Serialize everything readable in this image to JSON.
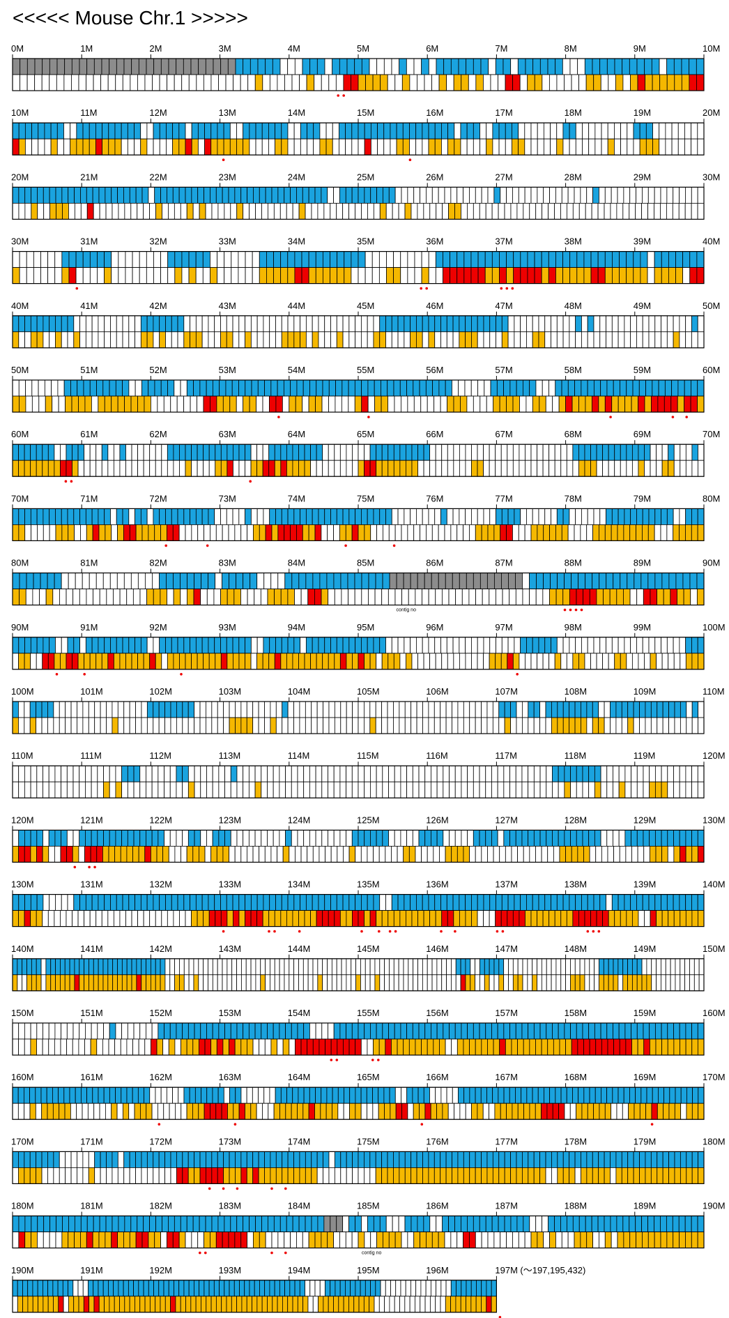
{
  "title": "<<<<< Mouse Chr.1 >>>>>",
  "end_note": "(〜197,195,432)",
  "gap_label": "contig no",
  "colors": {
    "cloned": "#1aa3df",
    "gap": "#8c8c8c",
    "marker": "#f5b800",
    "hit": "#ee0000",
    "empty": "#ffffff",
    "border": "#000000",
    "dot": "#ee0000"
  },
  "rows": [
    {
      "ticks": [
        "0M",
        "1M",
        "2M",
        "3M",
        "4M",
        "5M",
        "6M",
        "7M",
        "8M",
        "9M",
        "10M"
      ],
      "top": "GGGGGGGGGGGGGGGGGGGGGGGGGGGGGGBBBBBBxxxBBBxBBBBBxxxxBxxBxBBBBBBBxBBxBBBBBBxxxBBBBBBBBBBxBBBBB",
      "bottom": "xxxxxxxxxxxxxxxxxxxxxxxxxxxxxxxxxYxxxxxxYxxxxRRYYYYxxYxxxxYxYYxYxxxRRxYYxxxxxxYYxxYxYRYYYYYYRR",
      "dots": [
        [
          47.5,
          2
        ]
      ]
    },
    {
      "ticks": [
        "10M",
        "11M",
        "12M",
        "13M",
        "14M",
        "15M",
        "16M",
        "17M",
        "18M",
        "19M",
        "20M"
      ],
      "top": "BBBBBBBBxxBBBBBBBBBBxxBBBBBxBBBBBBxxBBBBBBBxxBBBxxxBBBBBBBBBBBBBBBBBBxBBBxxBBBBxxxxxxxBBxxxxxxxxxBBBxxxxxxxx",
      "bottom": "RYxxxxYxxYYYYRYYYxxxYxxxxYYRYxRYYYYYYxxxxYYxxxxxYYxxxxxRxxxxYYxxxYYxYYxxxxYxxxYYxxxxxYxxxxxxxYxxxxYYYxxxxxxx",
      "dots": [
        [
          30.5,
          1
        ],
        [
          57.5,
          1
        ]
      ]
    },
    {
      "ticks": [
        "20M",
        "21M",
        "22M",
        "23M",
        "24M",
        "25M",
        "26M",
        "27M",
        "28M",
        "29M",
        "30M"
      ],
      "top": "BBBBBBBBBBBBBBBBBBBBBBxBBBBBBBBBBBBBBBBBBBBBBBBBBBBxxBBBBBBBBBxxxxxxxxxxxxxxxxBxxxxxxxxxxxxxxxBxxxxxxxxxxxxxxxxx",
      "bottom": "xxxYxxYYYxxxRxxxxxxxxxxYxxxxYxYxxxxxYxxxxxxxxxYxxxxxxxxxxxxYxxxYxxxxxxYYxxxxxxxxxxxxxxxxxxxxxxxxxxxxxxxxxxxxxxx",
      "dots": []
    },
    {
      "ticks": [
        "30M",
        "31M",
        "32M",
        "33M",
        "34M",
        "35M",
        "36M",
        "37M",
        "38M",
        "39M",
        "40M"
      ],
      "top": "xxxxxxxBBBBBBBxxxxxxxxBBBBBBxxxxxxxBBBBBBBBBBBBBBBxxxxxxxxxxBBBBBBBBBBBBBBBBBBBBBBBBBBBBBBxBBBBBBB",
      "bottom": "YxxxxxxYRxxxxYxxxxxxxxxYxYxxYxxxxxxYYYYYRRYYYYYYxxxxxYYxxxYxxRRRRRRYYRYRRRRYRYYYYYRRYYYYYYxYYYYxRR",
      "dots": [
        [
          9.3,
          1
        ],
        [
          59.5,
          2
        ],
        [
          71.5,
          3
        ]
      ]
    },
    {
      "ticks": [
        "40M",
        "41M",
        "42M",
        "43M",
        "44M",
        "45M",
        "46M",
        "47M",
        "48M",
        "49M",
        "50M"
      ],
      "top": "BBBBBBBBBBxxxxxxxxxxxBBBBBBBxxxxxxxxxxxxxxxxxxxxxxxxxxxxxxxxBBBBBBBBBBBBBBBBBBBBBxxxxxxxxxxxBxBxxxxxxxxxxxxxxxxBx",
      "bottom": "YxxYYxxYxxYxxxxxxxxxxYYxYxxxYYYxxxYYxxYxxxxxYYYYxYxxxYxxxxxYYxxxxYYxYxxxxYYYxxxxYxxxxYYxxxxxxxxxxxxxxxxxxxxxYxxxx",
      "dots": []
    },
    {
      "ticks": [
        "50M",
        "51M",
        "52M",
        "53M",
        "54M",
        "55M",
        "56M",
        "57M",
        "58M",
        "59M",
        "60M"
      ],
      "top": "xxxxxxxxBBBBBBBBBBxxBBBBBxxBBBBBBBBBBBBBBBBBBBBBBBBBBBBBBBBBBBBBBBBBxxxxxxBBBBBBBxxxBBBBBBBBBBBBBBBBBBBBBBB",
      "bottom": "YYxxxYxxYYYYxYYYYYYYYxxxxxxxxRRYYYxYYxxRRxYYxYYxxxxxYRxYYxxxxxxxxxYYYxxxxYYYYxxYYxxYRYYYRYRYYYYRYRRRRYRRY",
      "dots": [
        [
          38.5,
          1
        ],
        [
          51.5,
          1
        ],
        [
          86.5,
          1
        ],
        [
          95.5,
          1
        ],
        [
          97.5,
          1
        ]
      ]
    },
    {
      "ticks": [
        "60M",
        "61M",
        "62M",
        "63M",
        "64M",
        "65M",
        "66M",
        "67M",
        "68M",
        "69M",
        "70M"
      ],
      "top": "BBBBBBBxxBBBxxxBxxBxxxxxxxBBBBBBBBBBBBBBxxxBBBBBBBBBxxxxxxxxBBBBBBBBBBxxxxxxxxxxxxxxxxxxxxxxxxBBBBBBBBBBBBBxxxBxxxBx",
      "bottom": "YYYYYYYYRRYxxxxxxxxxxxxxxxxxxYxxxxYYRxxxYYRRYRYYYYxxxxxxxxYRRYYYYYYYxxxxxxxxxYYxxxxxxxxxxxxxxxxYYYxxxxxxxYxxxYYxxxxx",
      "dots": [
        [
          8.1,
          2
        ],
        [
          34.4,
          1
        ]
      ]
    },
    {
      "ticks": [
        "70M",
        "71M",
        "72M",
        "73M",
        "74M",
        "75M",
        "76M",
        "77M",
        "78M",
        "79M",
        "80M"
      ],
      "top": "BBBBBBBBBBBBBBBBxBBxBBxBBBBBBBBBBxxxxxBxxxBBBBBBBBBBBBBBBBBBBBxxxxxxxxBxxxxxxxxBBBBxxxxxxBBxxxxxxBBBBBBBBBBBxxBBB",
      "bottom": "YYxxxxxYYYxxYRYYxYRRYYYYYRRxxxxxxxxxxxxYYRYRRRRYYRxxxYYRYYxxxxxxxxxxxxxxxxxYYYYRRxxxYYYYYYxxxxYYYYYYYYYYxxxYYYYY",
      "dots": [
        [
          22.2,
          1
        ],
        [
          28.2,
          1
        ],
        [
          48.2,
          1
        ],
        [
          55.2,
          1
        ]
      ]
    },
    {
      "ticks": [
        "80M",
        "81M",
        "82M",
        "83M",
        "84M",
        "85M",
        "86M",
        "87M",
        "88M",
        "89M",
        "90M"
      ],
      "top": "BBBBBBBxxxxxxxxxxxxxxBBBBBBBBxBBBBBxxxxBBBBBBBBBBBBBBBGGGGGGGGGGGGGGGGGGGxBBBBBBBBBBBBBBBBBBBBBBBBB",
      "bottom": "YYxxxYxxxxxxxxxxxxxxYYYxYxYRxxxYYYxxxxYYYYxxRRYxxxxxxxxxxxxxxxxxxxxxxxxxxxxxxxxxYYYRRRRYYYYYxxRRYYRYYxY",
      "dots": [
        [
          81.1,
          4
        ]
      ],
      "gap_label_at": 55.5
    },
    {
      "ticks": [
        "90M",
        "91M",
        "92M",
        "93M",
        "94M",
        "95M",
        "96M",
        "97M",
        "98M",
        "99M",
        "100M"
      ],
      "top": "BBBBBBBxxBBxBBBBBBBBBBxxBBBBBBBBBBBBBBBxxBBBBBBxBBBBBBBBBBBBBxxxxxxxxxxxxxxxxxxxxxxBBBBBBxxxxxxxxxxxxxxxxxxxxxBBB",
      "bottom": "xYYxxRRYYRRYYYYYRYYYYYYRYxYYYYYYYYYRYYYYxYYYRYYYYYYYYYYRYYRYYxYYYxYxxxxxxxxxxxxxYYYRYxxxxxxYxxYYxxxxxYYxxxxYxxxxxYYY",
      "dots": [
        [
          6.4,
          1
        ],
        [
          10.4,
          1
        ],
        [
          24.4,
          1
        ],
        [
          73.0,
          1
        ]
      ]
    },
    {
      "ticks": [
        "100M",
        "101M",
        "102M",
        "103M",
        "104M",
        "105M",
        "106M",
        "107M",
        "108M",
        "109M",
        "110M"
      ],
      "top": "BxxBBBBxxxxxxxxxxxxxxxxBBBBBBBBxxxxxxxxxxxxxxxBxxxxxxxxxxxxxxxxxxxxxxxxxxxxxxxxxxxxBBBxxBBxBBBBBBBBBxxBBBBBBBBBBBBBxBx",
      "bottom": "YxxYxxxxxxxxxxxxxYxxxxxxxxxxxxxxxxxxxYYYYxxxYxxxxxxxxxxxxxxxxYxxxxxxxxxxxxxxxxxxxxxxYxxxxxxxYYYYYYxYYxxxxYxxxxxxxxxxxx",
      "dots": []
    },
    {
      "ticks": [
        "110M",
        "111M",
        "112M",
        "113M",
        "114M",
        "115M",
        "116M",
        "117M",
        "118M",
        "119M",
        "120M"
      ],
      "top": "xxxxxxxxxxxxxxxxxxBBBxxxxxxBBxxxxxxxBxxxxxxxxxxxxxxxxxxxxxxxxxxxxxxxxxxxxxxxxxxxxxxxxxxxxBBBBBBBBxxxxxxxxxxxxxxxxx",
      "bottom": "xxxxxxxxxxxxxxxYxYxxxxxxxxxxxYxxxxxxxxxxYxxxxxxxxxxxxxxxxxxxxxxxxxxxxxxxxxxxxxxxxxxxxxxxxxxYxxxxYxxxYxxxxYYYxxxxxx",
      "dots": []
    },
    {
      "ticks": [
        "120M",
        "121M",
        "122M",
        "123M",
        "124M",
        "125M",
        "126M",
        "127M",
        "128M",
        "129M",
        "130M"
      ],
      "top": "xBBBBxBBBxxBBBBBBBBBBBBBBxxxxBBxxBBBxxxxxxxxxBxxxxxxxxxxBBBBBBxxxxxBBBBxxxxxBBBBxBBBBBBBBBBBBBBBBxxxxBBBBBBBBBBBBB",
      "bottom": "YRRYRYxxRRYxRRRYYYYYYYRYYYxxxYYYxYYYxxxxxxxxxYxxxxxxxxxxYxxxxxxxxYYxxxxxYYYYxxxxxxxxxxxxxxxYYYYYxxxxxxxxxxYYYxYRYYR",
      "dots": [
        [
          9.0,
          1
        ],
        [
          11.5,
          2
        ]
      ]
    },
    {
      "ticks": [
        "130M",
        "131M",
        "132M",
        "133M",
        "134M",
        "135M",
        "136M",
        "137M",
        "138M",
        "139M",
        "140M"
      ],
      "top": "BBBBBxxxxxBBBBBBBBBBBBBBBBBBBBBBBBBBBBBBBBBBBBBBBBBBBBBBBBBBxxBBBBBBBBBBBBBBBBBBBBBBBBBBBBBBBBBBBxBBBBBBBBBBBBBBB",
      "bottom": "YYRYYxxxxxxxxxxxxxxxxxxxxxxxxxYYYRRRYRYRRRYYYYYYYYYRRRRYYRRYRYYYYYYYYYYYRRYYYYxxxRRRRRYYYYYYYYRRRRRRYYYYYxxRYYYYYYYY",
      "dots": [
        [
          30.5,
          1
        ],
        [
          37.5,
          2
        ],
        [
          41.5,
          1
        ],
        [
          50.5,
          1
        ],
        [
          53.0,
          1
        ],
        [
          55.0,
          2
        ],
        [
          62.0,
          1
        ],
        [
          64.0,
          1
        ],
        [
          70.5,
          2
        ],
        [
          84.0,
          3
        ]
      ]
    },
    {
      "ticks": [
        "140M",
        "141M",
        "142M",
        "143M",
        "144M",
        "145M",
        "146M",
        "147M",
        "148M",
        "149M",
        "150M"
      ],
      "top": "BBBBBBxBBBBBBBBBBBBBBBBBBBBBBBBBxxxxxxxxxxxxxxxxxxxxxxxxxxxxxxxxxxxxxxxxxxxxxxxxxxxxxxxxxxxxxBBBxxBBBBBxxxxxxxxxxxxxxxxxxxxBBBBBBBBBxxxxxxxxxxxxx",
      "bottom": "YxxYYYxYYYYYYRYYYYYYYYYYYYRYYYYYxxYYxxYxxxxxxxxxxxxxYxxxxxxxxxxxYxxxxxxxYxxxYxxxxxxxxxxxxxxxxxRYYxxYxxYxxYYxxYxxxxxxxYYYxxxYYYYxYYYYYYxxxxxxxxxxx",
      "dots": []
    },
    {
      "ticks": [
        "150M",
        "151M",
        "152M",
        "153M",
        "154M",
        "155M",
        "156M",
        "157M",
        "158M",
        "159M",
        "160M"
      ],
      "top": "xxxxxxxxxxxxxxxxBxxxxxxxBBBBBBBBBBBBBBBBBBBBBBBBBxxxxBBBBBBBBBBBBBBBBBBBBBBBBBBBBBBBBBBBBBBBBBBBBBBBBBBBBBBBBBBBBB",
      "bottom": "xxxYxxxxxxxxxYxxxxxxxxxRYxYxYYYRRYRYRYYYxxxYxYxRRRRRRRRRRRxxYYRYYYYYYYYYxxYYYYYYYRYYYYYYYYYYYRRRRRRRRRRYYRYYYYYYYYY",
      "dots": [
        [
          46.5,
          2
        ],
        [
          52.5,
          2
        ]
      ]
    },
    {
      "ticks": [
        "160M",
        "161M",
        "162M",
        "163M",
        "164M",
        "165M",
        "166M",
        "167M",
        "168M",
        "169M",
        "170M"
      ],
      "top": "BBBBBBBBBBBBBBBBBBBBBBBBxxxxxxBBBBBBBxBBxxxxxxBBBBBBBBBBBBBBBBBBBBBxxBBBBxxxxxBBBBBBBBBBBBBBBBBBBBBBBBBBBBBBBBBBBBBBBBBBB",
      "bottom": "xxxYxYYYYYxxxxxxxYxYxYYYxxxxxxYYYRRRRYYRYYxxxYYYYYYRYYYYxxYYxxxYYYRRxYYRYYYxxxxYYxxYYYYYYYYRRRRxxYYYYYYxxxYYYYRYYYYxYYY",
      "dots": [
        [
          21.2,
          1
        ],
        [
          32.2,
          1
        ],
        [
          59.2,
          1
        ],
        [
          92.5,
          1
        ]
      ]
    },
    {
      "ticks": [
        "170M",
        "171M",
        "172M",
        "173M",
        "174M",
        "175M",
        "176M",
        "177M",
        "178M",
        "179M",
        "180M"
      ],
      "top": "BBBBBBBBxxxxxxBBBBxBBBBBBBBBBBBBBBBBBBBBBBBBBBBBBBBBBBxBBBBBBBBBBBBBBBBBBBBBBBBBBBBBBBBBBBBBBBBBBBBBBBBBBBBBBBBBBBBBBB",
      "bottom": "xYYYYxxxxxxxxYxxxxxxxxxxxxxxRRYYRRRRYYYRYRYYYYYYYYYYxxxxxxxxxxYYYYYYYYYYYYYYYYYYYYYYYYYYYYYxxYYYxYYYYYxYYYYYYYYYYYYYYY",
      "dots": [
        [
          28.5,
          1
        ],
        [
          30.5,
          1
        ],
        [
          32.5,
          1
        ],
        [
          37.5,
          1
        ],
        [
          39.5,
          1
        ]
      ]
    },
    {
      "ticks": [
        "180M",
        "181M",
        "182M",
        "183M",
        "184M",
        "185M",
        "186M",
        "187M",
        "188M",
        "189M",
        "190M"
      ],
      "top": "BBBBBBBBBBBBBBBBBBBBBBBBBBBBBBBBBBBBBBBBBBBBBBBBBBGGGxBBxBBBxxxBBBBxxBBBBBBBBBBBBBBxxxBBBBBBBBBBBBBBBBBBBBBBBBB",
      "bottom": "xRYYxxxxYYYYRYYYRYYYRRYYxRRYxxxYYRRRRRxYYxxxxxxxYYYYxxxxYxxYYYYxxYYYYYxxxRRxxxxxxxxxYYxYxxxYYYxxYxYYYYYYYYYYYYYY",
      "dots": [
        [
          27.5,
          2
        ],
        [
          37.5,
          1
        ],
        [
          39.5,
          1
        ]
      ],
      "gap_label_at": 50.5
    },
    {
      "ticks": [
        "190M",
        "191M",
        "192M",
        "193M",
        "194M",
        "195M",
        "196M",
        "197M"
      ],
      "top": "BBBBBBBBBBBBxxxBBBBBBBBBBBBBBBBBBBBBBBBBBBBBBBBBBBBBBBBBBBxxxxBBBBBBBBBBBxxxxxxxxxxxxxxBBBBBBBBB",
      "bottom": "xYYYYYYYYRxYYYRYRYYYYYYYYYYYYYYRYYYYYYYYYYYYYYYYYYYYYYYYYYxxYYYYYYYYYYYxxxxxxxxxxxxxxYYYYYYYYRY",
      "dots": [
        [
          70.5,
          1
        ]
      ]
    }
  ]
}
